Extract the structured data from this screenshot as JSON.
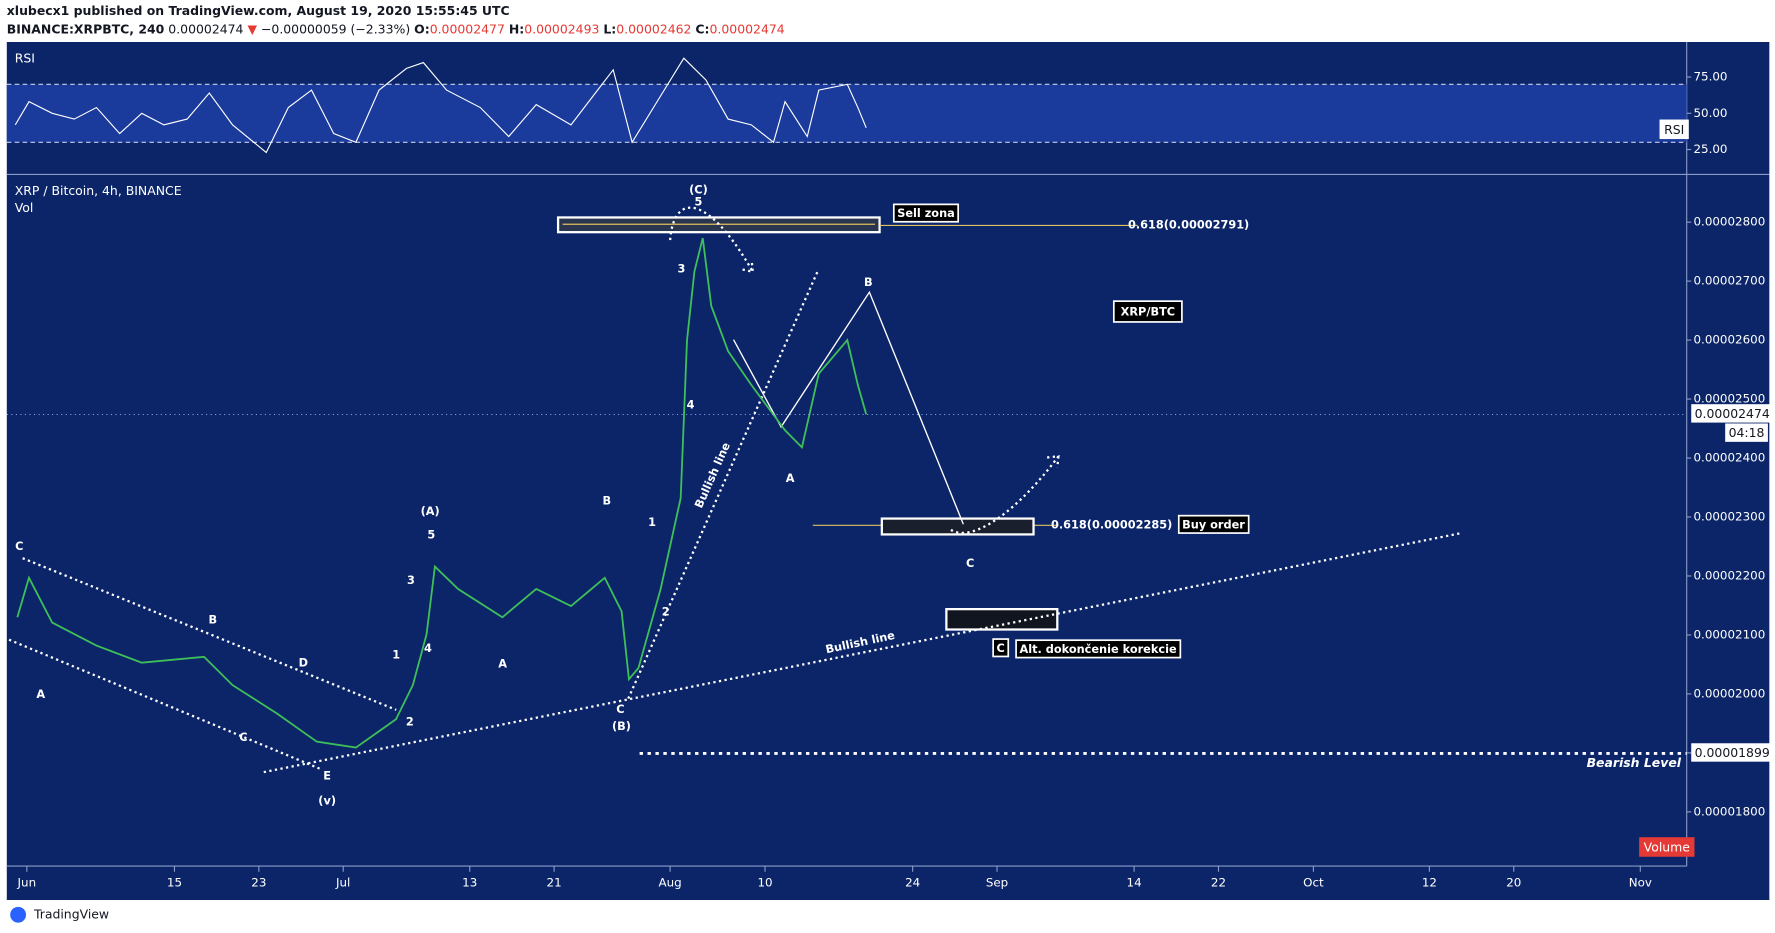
{
  "header": {
    "publisher": "xlubecx1 published on TradingView.com, August 19, 2020 15:55:45 UTC",
    "symbol": "BINANCE:XRPBTC, 240",
    "last": "0.00002474",
    "arrow": "▼",
    "change": "−0.00000059 (−2.33%)",
    "open_key": "O:",
    "open": "0.00002477",
    "high_key": "H:",
    "high": "0.00002493",
    "low_key": "L:",
    "low": "0.00002462",
    "close_key": "C:",
    "close": "0.00002474"
  },
  "chart_data": [
    {
      "type": "line",
      "title": "RSI",
      "color": "#ffffff",
      "x": [
        -1.1,
        0.2,
        2.4,
        4.5,
        6.6,
        8.8,
        10.9,
        13.0,
        15.2,
        17.3,
        19.5,
        22.7,
        24.8,
        27.0,
        29.1,
        31.2,
        33.4,
        36.0,
        37.6,
        39.8,
        43.0,
        45.7,
        48.3,
        51.6,
        53.7,
        55.6,
        57.4,
        60.1,
        62.3,
        64.4,
        66.5,
        68.7,
        70.8,
        71.9,
        74.0,
        75.1,
        77.8,
        78.8,
        79.6
      ],
      "values": [
        42,
        58,
        50,
        46,
        54,
        36,
        50,
        42,
        46,
        64,
        42,
        23,
        54,
        66,
        36,
        30,
        66,
        81,
        85,
        66,
        54,
        34,
        56,
        42,
        62,
        80,
        30,
        62,
        88,
        73,
        46,
        42,
        30,
        58,
        34,
        66,
        70,
        54,
        40
      ],
      "xlim": [
        -1.9,
        157.4
      ],
      "ylim": [
        8.6,
        98.4
      ],
      "yticks": [
        {
          "value": 25,
          "label": "25.00"
        },
        {
          "value": 50,
          "label": "50.00"
        },
        {
          "value": 75,
          "label": "75.00"
        }
      ],
      "levels": [
        30,
        70
      ],
      "band_color": "#1a3a9c"
    },
    {
      "type": "line",
      "title": "XRP / Bitcoin, 4h, BINANCE",
      "subtitle": "Vol",
      "color": "#3fbf5a",
      "x": [
        -0.9,
        0.2,
        2.4,
        6.6,
        10.9,
        16.8,
        19.5,
        23.7,
        27.5,
        31.2,
        35.0,
        36.6,
        37.9,
        38.7,
        40.9,
        45.1,
        48.3,
        51.6,
        54.8,
        56.4,
        57.1,
        58.0,
        60.1,
        62.0,
        62.6,
        63.3,
        64.1,
        64.9,
        66.5,
        68.7,
        71.9,
        73.5,
        75.1,
        77.8,
        78.8,
        79.6
      ],
      "values": [
        2.13e-05,
        2.197e-05,
        2.121e-05,
        2.082e-05,
        2.053e-05,
        2.063e-05,
        2.015e-05,
        1.967e-05,
        1.919e-05,
        1.909e-05,
        1.957e-05,
        2.015e-05,
        2.101e-05,
        2.216e-05,
        2.178e-05,
        2.13e-05,
        2.178e-05,
        2.149e-05,
        2.197e-05,
        2.14e-05,
        2.025e-05,
        2.044e-05,
        2.178e-05,
        2.332e-05,
        2.6e-05,
        2.716e-05,
        2.773e-05,
        2.658e-05,
        2.581e-05,
        2.524e-05,
        2.447e-05,
        2.418e-05,
        2.543e-05,
        2.6e-05,
        2.524e-05,
        2.474e-05
      ],
      "xlim": [
        -1.9,
        157.4
      ],
      "ylim": [
        1.708e-05,
        2.879e-05
      ],
      "yticks": [
        {
          "value": 1.8e-05,
          "label": "0.00001800"
        },
        {
          "value": 1.9e-05,
          "label": "0.00001900"
        },
        {
          "value": 2e-05,
          "label": "0.00002000"
        },
        {
          "value": 2.1e-05,
          "label": "0.00002100"
        },
        {
          "value": 2.2e-05,
          "label": "0.00002200"
        },
        {
          "value": 2.3e-05,
          "label": "0.00002300"
        },
        {
          "value": 2.4e-05,
          "label": "0.00002400"
        },
        {
          "value": 2.5e-05,
          "label": "0.00002500"
        },
        {
          "value": 2.6e-05,
          "label": "0.00002600"
        },
        {
          "value": 2.7e-05,
          "label": "0.00002700"
        },
        {
          "value": 2.8e-05,
          "label": "0.00002800"
        }
      ],
      "xticks": [
        {
          "value": 0,
          "label": "Jun"
        },
        {
          "value": 14,
          "label": "15"
        },
        {
          "value": 22,
          "label": "23"
        },
        {
          "value": 30,
          "label": "Jul"
        },
        {
          "value": 42,
          "label": "13"
        },
        {
          "value": 50,
          "label": "21"
        },
        {
          "value": 61,
          "label": "Aug"
        },
        {
          "value": 70,
          "label": "10"
        },
        {
          "value": 84,
          "label": "24"
        },
        {
          "value": 92,
          "label": "Sep"
        },
        {
          "value": 105,
          "label": "14"
        },
        {
          "value": 113,
          "label": "22"
        },
        {
          "value": 122,
          "label": "Oct"
        },
        {
          "value": 133,
          "label": "12"
        },
        {
          "value": 141,
          "label": "20"
        },
        {
          "value": 153,
          "label": "Nov"
        }
      ],
      "last_price": {
        "value": 2.474e-05,
        "label": "0.00002474"
      },
      "countdown": "04:18",
      "bearish_level": {
        "value": 1.899e-05,
        "label": "0.00001899"
      },
      "bearish_level_name": "Bearish Level",
      "volume_label": "Volume"
    }
  ],
  "annotations": [
    "C",
    "A",
    "B",
    "D",
    "C",
    "E",
    "(v)",
    "1",
    "2",
    "3",
    "4",
    "5",
    "(A)",
    "A",
    "B",
    "C",
    "(B)",
    "1",
    "2",
    "3",
    "4",
    "5",
    "(C)",
    "A",
    "B",
    "C",
    "Bullish line",
    "Bullish line",
    "Sell zona",
    "0.618(0.00002791)",
    "0.618(0.00002285)",
    "Buy order",
    "XRP/BTC",
    "C",
    "Alt. dokončenie korekcie"
  ],
  "footer": "TradingView"
}
